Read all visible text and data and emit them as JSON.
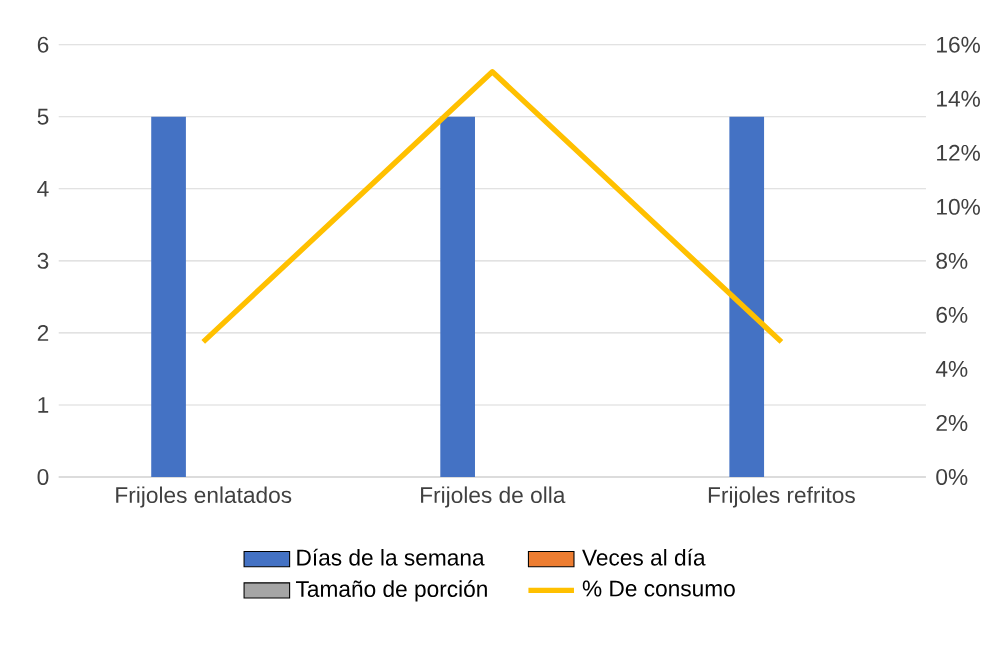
{
  "chart_data": {
    "type": "bar",
    "categories": [
      "Frijoles enlatados",
      "Frijoles de olla",
      "Frijoles refritos"
    ],
    "series": [
      {
        "name": "Días de la semana",
        "color": "#4472c4",
        "values": [
          5,
          5,
          5
        ]
      },
      {
        "name": "Veces al día",
        "color": "#ed7d31",
        "values": [
          null,
          null,
          null
        ]
      },
      {
        "name": "Tamaño de porción",
        "color": "#a5a5a5",
        "values": [
          null,
          null,
          null
        ]
      },
      {
        "name": "% De consumo",
        "color": "#ffc000",
        "type": "line",
        "axis": "y2",
        "values": [
          5,
          15,
          5
        ]
      }
    ],
    "ylim": [
      0,
      6
    ],
    "yticks": [
      0,
      1,
      2,
      3,
      4,
      5,
      6
    ],
    "y2lim": [
      0,
      16
    ],
    "y2ticks": [
      {
        "value": 0,
        "label": "0%"
      },
      {
        "value": 2,
        "label": "2%"
      },
      {
        "value": 4,
        "label": "4%"
      },
      {
        "value": 6,
        "label": "6%"
      },
      {
        "value": 8,
        "label": "8%"
      },
      {
        "value": 10,
        "label": "10%"
      },
      {
        "value": 12,
        "label": "12%"
      },
      {
        "value": 14,
        "label": "14%"
      },
      {
        "value": 16,
        "label": "16%"
      }
    ],
    "grid": "y",
    "legend": "bottom"
  }
}
